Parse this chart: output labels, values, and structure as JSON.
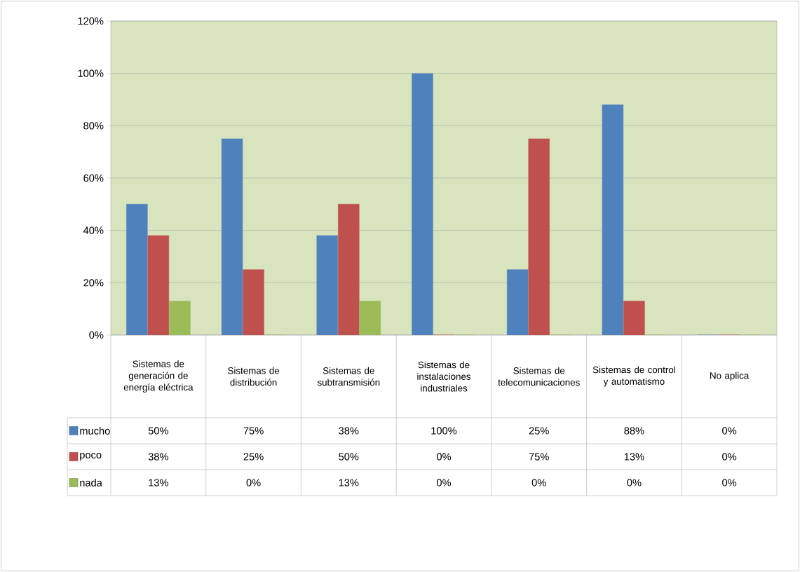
{
  "chart_data": {
    "type": "bar",
    "categories": [
      "Sistemas de generación de energía eléctrica",
      "Sistemas de distribución",
      "Sistemas de subtransmisión",
      "Sistemas de instalaciones industriales",
      "Sistemas de telecomunicaciones",
      "Sistemas de control y automatismo",
      "No aplica"
    ],
    "series": [
      {
        "name": "mucho",
        "color": "#4f81bd",
        "values": [
          50,
          75,
          38,
          100,
          25,
          88,
          0
        ],
        "value_labels": [
          "50%",
          "75%",
          "38%",
          "100%",
          "25%",
          "88%",
          "0%"
        ]
      },
      {
        "name": "poco",
        "color": "#c0504d",
        "values": [
          38,
          25,
          50,
          0,
          75,
          13,
          0
        ],
        "value_labels": [
          "38%",
          "25%",
          "50%",
          "0%",
          "75%",
          "13%",
          "0%"
        ]
      },
      {
        "name": "nada",
        "color": "#9bbb59",
        "values": [
          13,
          0,
          13,
          0,
          0,
          0,
          0
        ],
        "value_labels": [
          "13%",
          "0%",
          "13%",
          "0%",
          "0%",
          "0%",
          "0%"
        ]
      }
    ],
    "ylim": [
      0,
      120
    ],
    "yticks": [
      {
        "value": 0,
        "label": "0%"
      },
      {
        "value": 20,
        "label": "20%"
      },
      {
        "value": 40,
        "label": "40%"
      },
      {
        "value": 60,
        "label": "60%"
      },
      {
        "value": 80,
        "label": "80%"
      },
      {
        "value": 100,
        "label": "100%"
      },
      {
        "value": 120,
        "label": "120%"
      }
    ],
    "grid": "y",
    "legend": "bottom"
  }
}
